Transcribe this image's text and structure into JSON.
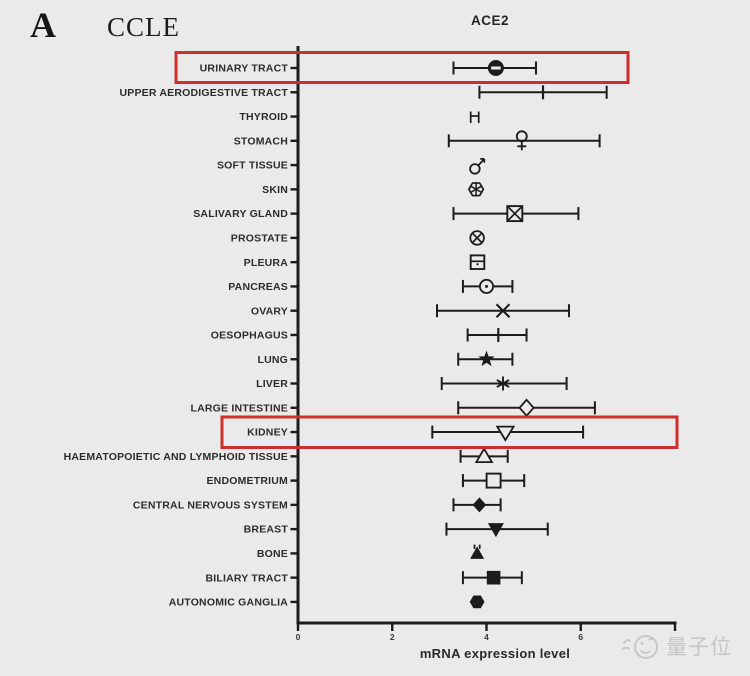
{
  "panel_label": "A",
  "dataset_label": "CCLE",
  "watermark": {
    "text": "量子位",
    "color": "#c5c5c5",
    "icon": "qbitai-smiley-logo"
  },
  "colors": {
    "background": "#eaeaea",
    "ink": "#1c1c1c",
    "highlight_red": "#cd302c"
  },
  "chart_data": {
    "type": "scatter",
    "subtype": "forest-plot-with-error-bars",
    "title": "ACE2",
    "xlabel": "mRNA expression level",
    "ylabel": "",
    "xlim": [
      0,
      8
    ],
    "x_ticks": [
      0,
      2,
      4,
      6
    ],
    "grid": false,
    "legend": "none",
    "highlighted_rows": [
      "URINARY TRACT",
      "KIDNEY"
    ],
    "rows": [
      {
        "category": "URINARY TRACT",
        "marker": "circle-minus-filled",
        "value": 4.2,
        "low": 3.3,
        "high": 5.05,
        "highlighted": true
      },
      {
        "category": "UPPER AERODIGESTIVE TRACT",
        "marker": "vline",
        "value": 5.2,
        "low": 3.85,
        "high": 6.55,
        "highlighted": false
      },
      {
        "category": "THYROID",
        "marker": "mini-errorbar",
        "value": 3.75,
        "low": null,
        "high": null,
        "highlighted": false
      },
      {
        "category": "STOMACH",
        "marker": "female-sign",
        "value": 4.75,
        "low": 3.2,
        "high": 6.4,
        "highlighted": false
      },
      {
        "category": "SOFT TISSUE",
        "marker": "male-sign",
        "value": 3.8,
        "low": null,
        "high": null,
        "highlighted": false
      },
      {
        "category": "SKIN",
        "marker": "hexagon-spokes",
        "value": 3.78,
        "low": null,
        "high": null,
        "highlighted": false
      },
      {
        "category": "SALIVARY GLAND",
        "marker": "square-x-open",
        "value": 4.6,
        "low": 3.3,
        "high": 5.95,
        "highlighted": false
      },
      {
        "category": "PROSTATE",
        "marker": "circle-x-open",
        "value": 3.8,
        "low": null,
        "high": null,
        "highlighted": false
      },
      {
        "category": "PLEURA",
        "marker": "square-minus-open",
        "value": 3.81,
        "low": null,
        "high": null,
        "highlighted": false
      },
      {
        "category": "PANCREAS",
        "marker": "circle-dot-open",
        "value": 4.0,
        "low": 3.5,
        "high": 4.55,
        "highlighted": false
      },
      {
        "category": "OVARY",
        "marker": "x-mark",
        "value": 4.35,
        "low": 2.95,
        "high": 5.75,
        "highlighted": false
      },
      {
        "category": "OESOPHAGUS",
        "marker": "plus-mark",
        "value": 4.25,
        "low": 3.6,
        "high": 4.85,
        "highlighted": false
      },
      {
        "category": "LUNG",
        "marker": "star-filled",
        "value": 4.0,
        "low": 3.4,
        "high": 4.55,
        "highlighted": false
      },
      {
        "category": "LIVER",
        "marker": "asterisk",
        "value": 4.35,
        "low": 3.05,
        "high": 5.7,
        "highlighted": false
      },
      {
        "category": "LARGE INTESTINE",
        "marker": "diamond-open",
        "value": 4.85,
        "low": 3.4,
        "high": 6.3,
        "highlighted": false
      },
      {
        "category": "KIDNEY",
        "marker": "triangle-down-open",
        "value": 4.4,
        "low": 2.85,
        "high": 6.05,
        "highlighted": true
      },
      {
        "category": "HAEMATOPOIETIC AND LYMPHOID TISSUE",
        "marker": "triangle-up-open",
        "value": 3.95,
        "low": 3.45,
        "high": 4.45,
        "highlighted": false
      },
      {
        "category": "ENDOMETRIUM",
        "marker": "square-open",
        "value": 4.15,
        "low": 3.5,
        "high": 4.8,
        "highlighted": false
      },
      {
        "category": "CENTRAL NERVOUS SYSTEM",
        "marker": "diamond-filled",
        "value": 3.85,
        "low": 3.3,
        "high": 4.3,
        "highlighted": false
      },
      {
        "category": "BREAST",
        "marker": "triangle-down-filled",
        "value": 4.2,
        "low": 3.15,
        "high": 5.3,
        "highlighted": false
      },
      {
        "category": "BONE",
        "marker": "triangle-up-filled-capped",
        "value": 3.8,
        "low": null,
        "high": null,
        "highlighted": false
      },
      {
        "category": "BILIARY TRACT",
        "marker": "square-filled",
        "value": 4.15,
        "low": 3.5,
        "high": 4.75,
        "highlighted": false
      },
      {
        "category": "AUTONOMIC GANGLIA",
        "marker": "hexagon-filled",
        "value": 3.8,
        "low": null,
        "high": null,
        "highlighted": false
      }
    ]
  }
}
